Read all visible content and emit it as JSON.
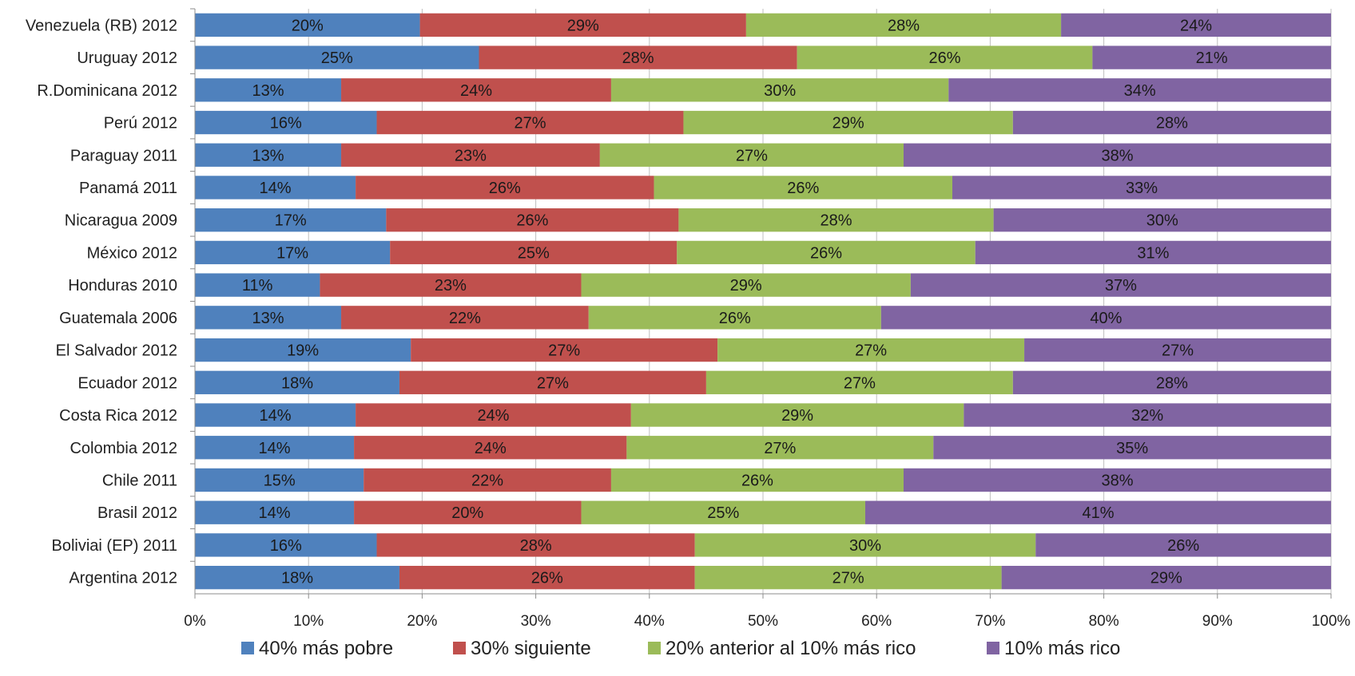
{
  "chart_data": {
    "type": "bar",
    "orientation": "horizontal",
    "stacked": true,
    "percent_stacked": true,
    "categories": [
      "Venezuela (RB) 2012",
      "Uruguay 2012",
      "R.Dominicana 2012",
      "Perú 2012",
      "Paraguay 2011",
      "Panamá 2011",
      "Nicaragua 2009",
      "México 2012",
      "Honduras 2010",
      "Guatemala 2006",
      "El Salvador 2012",
      "Ecuador 2012",
      "Costa Rica 2012",
      "Colombia 2012",
      "Chile 2011",
      "Brasil 2012",
      "Boliviai (EP) 2011",
      "Argentina 2012"
    ],
    "series": [
      {
        "name": "40% más pobre",
        "color": "#4f81bd",
        "values": [
          20,
          25,
          13,
          16,
          13,
          14,
          17,
          17,
          11,
          13,
          19,
          18,
          14,
          14,
          15,
          14,
          16,
          18
        ],
        "labels": [
          "20%",
          "25%",
          "13%",
          "16%",
          "13%",
          "14%",
          "17%",
          "17%",
          "11%",
          "13%",
          "19%",
          "18%",
          "14%",
          "14%",
          "15%",
          "14%",
          "16%",
          "18%"
        ]
      },
      {
        "name": "30% siguiente",
        "color": "#c0504d",
        "values": [
          29,
          28,
          24,
          27,
          23,
          26,
          26,
          25,
          23,
          22,
          27,
          27,
          24,
          24,
          22,
          20,
          28,
          26
        ],
        "labels": [
          "29%",
          "28%",
          "24%",
          "27%",
          "23%",
          "26%",
          "26%",
          "25%",
          "23%",
          "22%",
          "27%",
          "27%",
          "24%",
          "24%",
          "22%",
          "20%",
          "28%",
          "26%"
        ]
      },
      {
        "name": "20% anterior al 10% más rico",
        "color": "#9bbb59",
        "values": [
          28,
          26,
          30,
          29,
          27,
          26,
          28,
          26,
          29,
          26,
          27,
          27,
          29,
          27,
          26,
          25,
          30,
          27
        ],
        "labels": [
          "28%",
          "26%",
          "30%",
          "29%",
          "27%",
          "26%",
          "28%",
          "26%",
          "29%",
          "26%",
          "27%",
          "27%",
          "29%",
          "27%",
          "26%",
          "25%",
          "30%",
          "27%"
        ]
      },
      {
        "name": "10% más rico",
        "color": "#8064a2",
        "values": [
          24,
          21,
          34,
          28,
          38,
          33,
          30,
          31,
          37,
          40,
          27,
          28,
          32,
          35,
          38,
          41,
          26,
          29
        ],
        "labels": [
          "24%",
          "21%",
          "34%",
          "28%",
          "38%",
          "33%",
          "30%",
          "31%",
          "37%",
          "40%",
          "27%",
          "28%",
          "32%",
          "35%",
          "38%",
          "41%",
          "26%",
          "29%"
        ]
      }
    ],
    "xlim": [
      0,
      100
    ],
    "x_ticks": [
      "0%",
      "10%",
      "20%",
      "30%",
      "40%",
      "50%",
      "60%",
      "70%",
      "80%",
      "90%",
      "100%"
    ],
    "grid": true,
    "legend_position": "bottom"
  }
}
